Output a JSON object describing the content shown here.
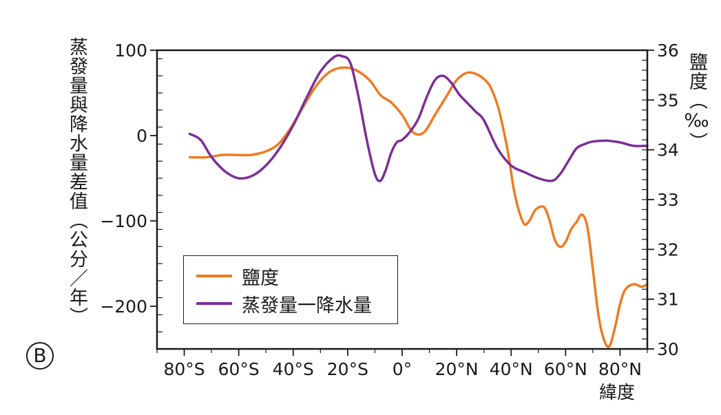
{
  "panel_label": "B",
  "left_axis_label": "蒸發量與降水量差值（公分／年）",
  "right_axis_label": "鹽度（‰）",
  "x_axis_name": "緯度",
  "colors": {
    "salinity": "#f07a1f",
    "evap_minus_precip": "#7b2d9a",
    "axis": "#1a1a1a"
  },
  "chart_data": {
    "type": "line",
    "x_ticks": [
      "80°S",
      "60°S",
      "40°S",
      "20°S",
      "0°",
      "20°N",
      "40°N",
      "60°N",
      "80°N"
    ],
    "x_tick_values": [
      -80,
      -60,
      -40,
      -20,
      0,
      20,
      40,
      60,
      80
    ],
    "xlim": [
      -90,
      90
    ],
    "left_axis": {
      "ticks": [
        "100",
        "0",
        "−100",
        "−200"
      ],
      "tick_values": [
        100,
        0,
        -100,
        -200
      ],
      "ylim": [
        -250,
        100
      ]
    },
    "right_axis": {
      "ticks": [
        "36",
        "35",
        "34",
        "33",
        "32",
        "31",
        "30"
      ],
      "tick_values": [
        36,
        35,
        34,
        33,
        32,
        31,
        30
      ],
      "ylim": [
        30,
        36
      ]
    },
    "legend_position": "bottom-left",
    "series": [
      {
        "name": "鹽度",
        "axis": "right",
        "x": [
          -78,
          -72,
          -65,
          -55,
          -47,
          -42,
          -37,
          -32,
          -27,
          -22,
          -17,
          -12,
          -8,
          -4,
          0,
          4,
          8,
          12,
          16,
          20,
          24,
          28,
          32,
          35,
          37,
          39,
          41,
          43,
          45,
          47,
          49,
          52,
          54,
          56,
          58,
          60,
          62,
          64,
          66,
          68,
          70,
          72,
          74,
          76,
          78,
          80,
          82,
          85,
          88,
          90
        ],
        "y": [
          33.85,
          33.85,
          33.9,
          33.9,
          34.05,
          34.35,
          34.8,
          35.25,
          35.55,
          35.65,
          35.6,
          35.4,
          35.1,
          34.95,
          34.7,
          34.35,
          34.35,
          34.7,
          35.05,
          35.4,
          35.55,
          35.5,
          35.3,
          34.9,
          34.45,
          33.9,
          33.2,
          32.75,
          32.5,
          32.6,
          32.8,
          32.85,
          32.6,
          32.2,
          32.05,
          32.15,
          32.4,
          32.55,
          32.7,
          32.45,
          31.6,
          30.7,
          30.2,
          30.05,
          30.4,
          30.9,
          31.2,
          31.3,
          31.25,
          31.3
        ]
      },
      {
        "name": "蒸發量一降水量",
        "axis": "left",
        "x": [
          -78,
          -74,
          -70,
          -65,
          -60,
          -55,
          -50,
          -45,
          -40,
          -35,
          -30,
          -25,
          -22,
          -19,
          -16,
          -13,
          -10,
          -8,
          -6,
          -4,
          -2,
          0,
          3,
          6,
          9,
          12,
          15,
          18,
          21,
          24,
          27,
          30,
          35,
          40,
          45,
          50,
          55,
          58,
          61,
          64,
          67,
          70,
          75,
          80,
          85,
          90
        ],
        "y": [
          2,
          -5,
          -25,
          -42,
          -50,
          -47,
          -35,
          -15,
          12,
          45,
          75,
          92,
          93,
          85,
          45,
          -5,
          -45,
          -53,
          -40,
          -20,
          -8,
          -5,
          5,
          20,
          45,
          65,
          70,
          62,
          48,
          38,
          28,
          18,
          -15,
          -35,
          -43,
          -50,
          -53,
          -45,
          -30,
          -15,
          -10,
          -7,
          -6,
          -8,
          -12,
          -12
        ]
      }
    ]
  }
}
